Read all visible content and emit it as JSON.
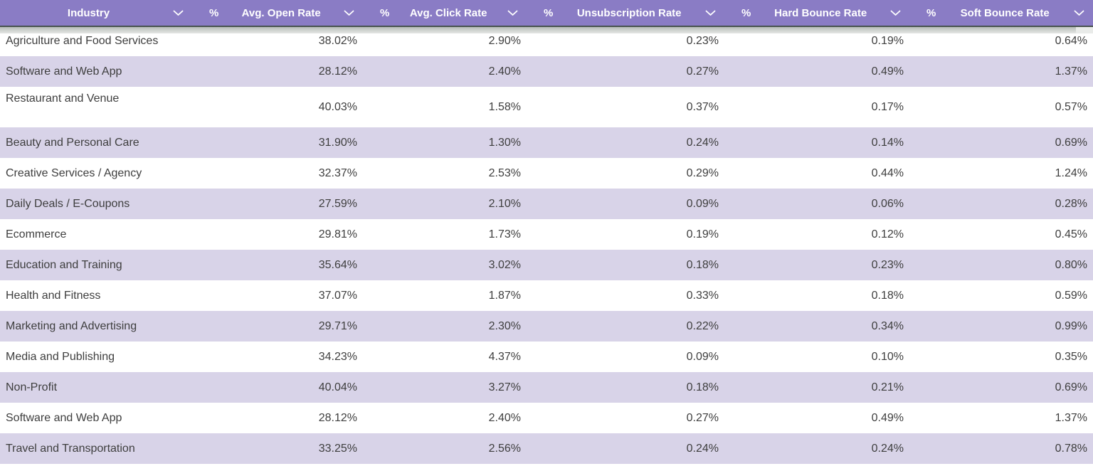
{
  "table": {
    "percent_sign": "%",
    "sort_icon": "chevron-down",
    "columns": [
      {
        "id": "industry",
        "label": "Industry",
        "percent_prefix": false
      },
      {
        "id": "avg-open-rate",
        "label": "Avg. Open Rate",
        "percent_prefix": true
      },
      {
        "id": "avg-click-rate",
        "label": "Avg. Click Rate",
        "percent_prefix": true
      },
      {
        "id": "unsubscription-rate",
        "label": "Unsubscription Rate",
        "percent_prefix": true
      },
      {
        "id": "hard-bounce-rate",
        "label": "Hard Bounce Rate",
        "percent_prefix": true
      },
      {
        "id": "soft-bounce-rate",
        "label": "Soft Bounce Rate",
        "percent_prefix": true
      }
    ],
    "rows": [
      {
        "industry": "Agriculture and Food Services",
        "values": [
          "38.02%",
          "2.90%",
          "0.23%",
          "0.19%",
          "0.64%"
        ]
      },
      {
        "industry": "Software and Web App",
        "values": [
          "28.12%",
          "2.40%",
          "0.27%",
          "0.49%",
          "1.37%"
        ]
      },
      {
        "industry": "Restaurant and Venue",
        "values": [
          "40.03%",
          "1.58%",
          "0.37%",
          "0.17%",
          "0.57%"
        ]
      },
      {
        "industry": "Beauty and Personal Care",
        "values": [
          "31.90%",
          "1.30%",
          "0.24%",
          "0.14%",
          "0.69%"
        ]
      },
      {
        "industry": "Creative Services / Agency",
        "values": [
          "32.37%",
          "2.53%",
          "0.29%",
          "0.44%",
          "1.24%"
        ]
      },
      {
        "industry": "Daily Deals / E-Coupons",
        "values": [
          "27.59%",
          "2.10%",
          "0.09%",
          "0.06%",
          "0.28%"
        ]
      },
      {
        "industry": "Ecommerce",
        "values": [
          "29.81%",
          "1.73%",
          "0.19%",
          "0.12%",
          "0.45%"
        ]
      },
      {
        "industry": "Education and Training",
        "values": [
          "35.64%",
          "3.02%",
          "0.18%",
          "0.23%",
          "0.80%"
        ]
      },
      {
        "industry": "Health and Fitness",
        "values": [
          "37.07%",
          "1.87%",
          "0.33%",
          "0.18%",
          "0.59%"
        ]
      },
      {
        "industry": "Marketing and Advertising",
        "values": [
          "29.71%",
          "2.30%",
          "0.22%",
          "0.34%",
          "0.99%"
        ]
      },
      {
        "industry": "Media and Publishing",
        "values": [
          "34.23%",
          "4.37%",
          "0.09%",
          "0.10%",
          "0.35%"
        ]
      },
      {
        "industry": "Non-Profit",
        "values": [
          "40.04%",
          "3.27%",
          "0.18%",
          "0.21%",
          "0.69%"
        ]
      },
      {
        "industry": "Software and Web App",
        "values": [
          "28.12%",
          "2.40%",
          "0.27%",
          "0.49%",
          "1.37%"
        ]
      },
      {
        "industry": "Travel and Transportation",
        "values": [
          "33.25%",
          "2.56%",
          "0.24%",
          "0.24%",
          "0.78%"
        ]
      }
    ]
  },
  "colors": {
    "header_bg": "#8a7cc5",
    "header_fg": "#ffffff",
    "row_alt_bg": "#d8d3e8",
    "row_bg": "#ffffff",
    "row_fg": "#3e3e3e",
    "scrollbar_line": "#47524e",
    "scrollbar_track": "#e9ebe9"
  }
}
